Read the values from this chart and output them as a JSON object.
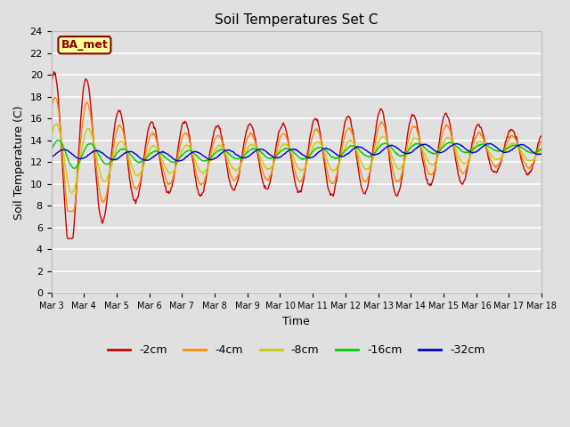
{
  "title": "Soil Temperatures Set C",
  "xlabel": "Time",
  "ylabel": "Soil Temperature (C)",
  "annotation": "BA_met",
  "ylim": [
    0,
    24
  ],
  "yticks": [
    0,
    2,
    4,
    6,
    8,
    10,
    12,
    14,
    16,
    18,
    20,
    22,
    24
  ],
  "x_labels": [
    "Mar 3",
    "Mar 4",
    "Mar 5",
    "Mar 6",
    "Mar 7",
    "Mar 8",
    "Mar 9",
    "Mar 10",
    "Mar 11",
    "Mar 12",
    "Mar 13",
    "Mar 14",
    "Mar 15",
    "Mar 16",
    "Mar 17",
    "Mar 18"
  ],
  "series_colors": [
    "#cc0000",
    "#ff8800",
    "#cccc00",
    "#00cc00",
    "#0000cc"
  ],
  "series_labels": [
    "-2cm",
    "-4cm",
    "-8cm",
    "-16cm",
    "-32cm"
  ],
  "background_color": "#e0e0e0",
  "grid_color": "#ffffff",
  "title_fontsize": 11,
  "figsize": [
    6.4,
    4.8
  ],
  "dpi": 100
}
